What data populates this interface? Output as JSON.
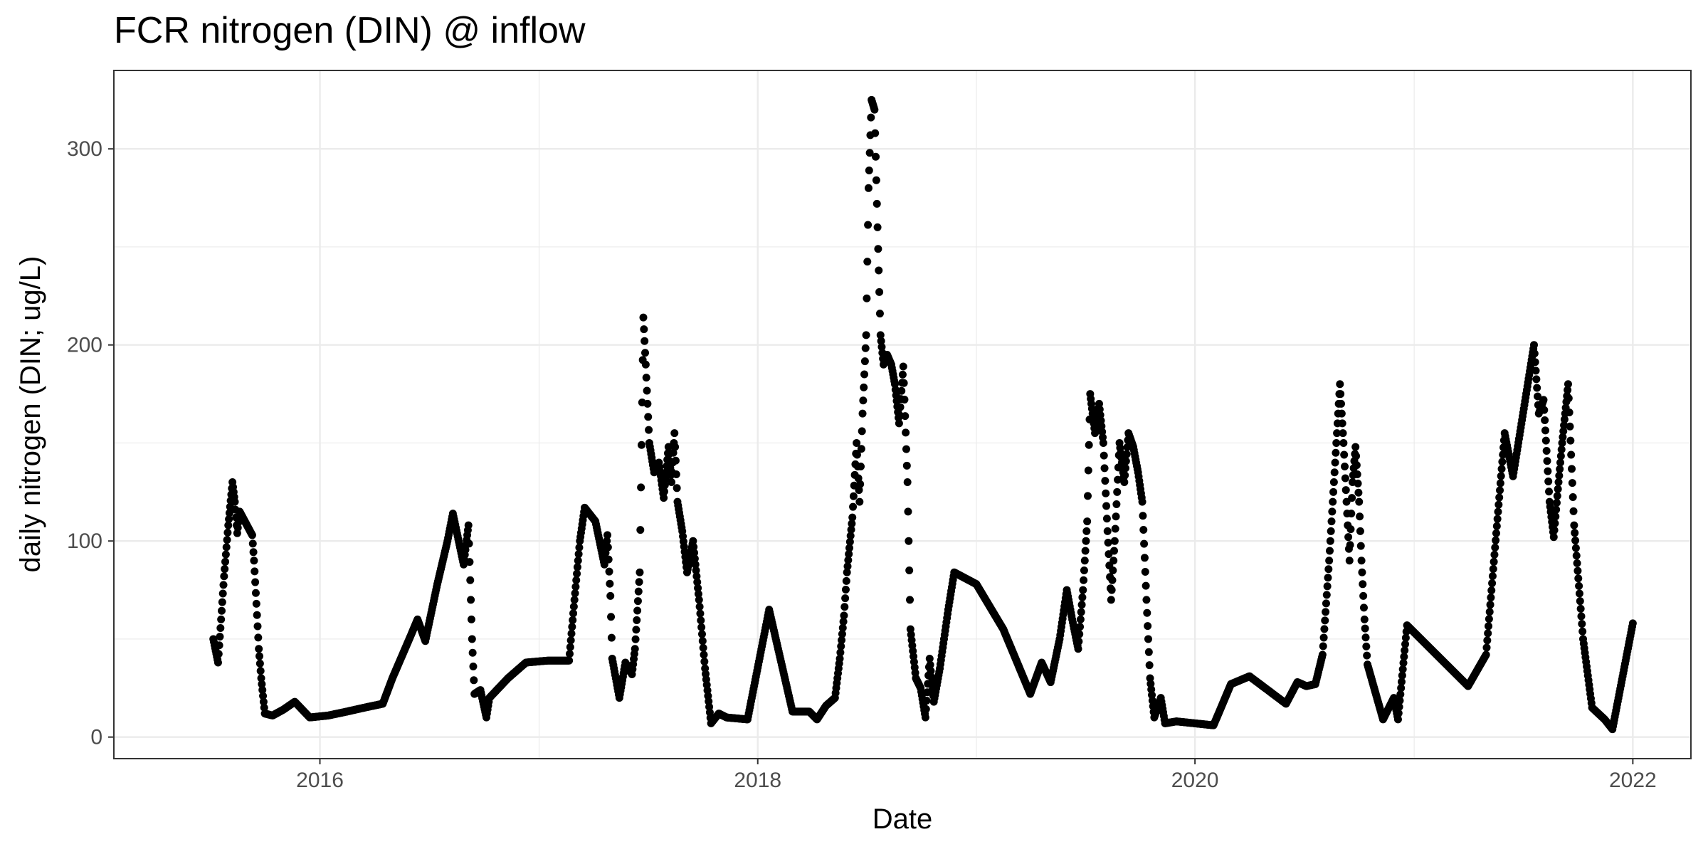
{
  "chart_data": {
    "type": "scatter",
    "title": "FCR nitrogen (DIN) @ inflow",
    "xlabel": "Date",
    "ylabel": "daily nitrogen (DIN; ug/L)",
    "x_type": "date",
    "xlim": [
      "2015-01-22",
      "2022-04-08"
    ],
    "ylim": [
      -11,
      340
    ],
    "x_ticks": [
      {
        "value": "2016-01-01",
        "label": "2016"
      },
      {
        "value": "2018-01-01",
        "label": "2018"
      },
      {
        "value": "2020-01-01",
        "label": "2020"
      },
      {
        "value": "2022-01-01",
        "label": "2022"
      }
    ],
    "x_minor": [
      "2017-01-01",
      "2019-01-01",
      "2021-01-01"
    ],
    "y_ticks": [
      0,
      100,
      200,
      300
    ],
    "y_minor": [
      50,
      150,
      250
    ],
    "grid": true,
    "legend": "none",
    "colors": {
      "points": "#000000",
      "grid": "#ebebeb",
      "panel_border": "#333333",
      "tick_label": "#4d4d4d"
    },
    "series": [
      {
        "points": [
          [
            "2015-07-07",
            50
          ],
          [
            "2015-07-15",
            38
          ],
          [
            "2015-07-20",
            60
          ],
          [
            "2015-07-25",
            82
          ],
          [
            "2015-08-01",
            108
          ],
          [
            "2015-08-08",
            130
          ],
          [
            "2015-08-12",
            120
          ],
          [
            "2015-08-16",
            104
          ],
          [
            "2015-08-20",
            115
          ],
          [
            "2015-09-10",
            103
          ],
          [
            "2015-09-13",
            90
          ],
          [
            "2015-09-17",
            68
          ],
          [
            "2015-09-21",
            45
          ],
          [
            "2015-09-25",
            30
          ],
          [
            "2015-10-01",
            12
          ],
          [
            "2015-10-14",
            11
          ],
          [
            "2015-11-01",
            14
          ],
          [
            "2015-11-20",
            18
          ],
          [
            "2015-12-15",
            10
          ],
          [
            "2016-01-15",
            11
          ],
          [
            "2016-02-15",
            13
          ],
          [
            "2016-03-15",
            15
          ],
          [
            "2016-04-15",
            17
          ],
          [
            "2016-05-01",
            30
          ],
          [
            "2016-06-01",
            52
          ],
          [
            "2016-06-12",
            60
          ],
          [
            "2016-06-25",
            49
          ],
          [
            "2016-07-15",
            78
          ],
          [
            "2016-08-01",
            100
          ],
          [
            "2016-08-10",
            114
          ],
          [
            "2016-08-28",
            88
          ],
          [
            "2016-09-05",
            108
          ],
          [
            "2016-09-08",
            80
          ],
          [
            "2016-09-11",
            50
          ],
          [
            "2016-09-15",
            22
          ],
          [
            "2016-09-25",
            24
          ],
          [
            "2016-10-05",
            10
          ],
          [
            "2016-10-10",
            20
          ],
          [
            "2016-11-10",
            30
          ],
          [
            "2016-12-10",
            38
          ],
          [
            "2017-01-15",
            39
          ],
          [
            "2017-02-20",
            39
          ],
          [
            "2017-03-01",
            70
          ],
          [
            "2017-03-10",
            100
          ],
          [
            "2017-03-18",
            117
          ],
          [
            "2017-04-05",
            110
          ],
          [
            "2017-04-20",
            88
          ],
          [
            "2017-04-25",
            103
          ],
          [
            "2017-04-30",
            72
          ],
          [
            "2017-05-03",
            40
          ],
          [
            "2017-05-15",
            20
          ],
          [
            "2017-05-25",
            38
          ],
          [
            "2017-06-05",
            32
          ],
          [
            "2017-06-10",
            45
          ],
          [
            "2017-06-18",
            84
          ],
          [
            "2017-06-24",
            214
          ],
          [
            "2017-06-28",
            190
          ],
          [
            "2017-07-04",
            150
          ],
          [
            "2017-07-12",
            135
          ],
          [
            "2017-07-20",
            140
          ],
          [
            "2017-07-28",
            122
          ],
          [
            "2017-08-05",
            148
          ],
          [
            "2017-08-10",
            130
          ],
          [
            "2017-08-15",
            155
          ],
          [
            "2017-08-20",
            120
          ],
          [
            "2017-08-28",
            105
          ],
          [
            "2017-09-05",
            84
          ],
          [
            "2017-09-15",
            100
          ],
          [
            "2017-09-25",
            70
          ],
          [
            "2017-10-05",
            35
          ],
          [
            "2017-10-15",
            7
          ],
          [
            "2017-10-28",
            12
          ],
          [
            "2017-11-10",
            10
          ],
          [
            "2017-12-15",
            9
          ],
          [
            "2018-01-20",
            65
          ],
          [
            "2018-02-28",
            13
          ],
          [
            "2018-03-28",
            13
          ],
          [
            "2018-04-10",
            9
          ],
          [
            "2018-04-25",
            16
          ],
          [
            "2018-05-10",
            20
          ],
          [
            "2018-05-18",
            40
          ],
          [
            "2018-05-25",
            62
          ],
          [
            "2018-05-30",
            84
          ],
          [
            "2018-06-08",
            112
          ],
          [
            "2018-06-15",
            150
          ],
          [
            "2018-06-20",
            120
          ],
          [
            "2018-06-25",
            165
          ],
          [
            "2018-07-01",
            205
          ],
          [
            "2018-07-05",
            280
          ],
          [
            "2018-07-10",
            325
          ],
          [
            "2018-07-15",
            320
          ],
          [
            "2018-07-20",
            260
          ],
          [
            "2018-07-25",
            205
          ],
          [
            "2018-07-30",
            190
          ],
          [
            "2018-08-05",
            195
          ],
          [
            "2018-08-12",
            190
          ],
          [
            "2018-08-18",
            180
          ],
          [
            "2018-08-25",
            160
          ],
          [
            "2018-09-01",
            189
          ],
          [
            "2018-09-08",
            130
          ],
          [
            "2018-09-13",
            55
          ],
          [
            "2018-09-22",
            30
          ],
          [
            "2018-09-30",
            25
          ],
          [
            "2018-10-08",
            10
          ],
          [
            "2018-10-15",
            40
          ],
          [
            "2018-10-22",
            18
          ],
          [
            "2018-11-01",
            35
          ],
          [
            "2018-11-15",
            65
          ],
          [
            "2018-11-25",
            84
          ],
          [
            "2019-01-01",
            78
          ],
          [
            "2019-02-15",
            55
          ],
          [
            "2019-04-01",
            22
          ],
          [
            "2019-04-20",
            38
          ],
          [
            "2019-05-05",
            28
          ],
          [
            "2019-05-20",
            50
          ],
          [
            "2019-06-01",
            75
          ],
          [
            "2019-06-10",
            60
          ],
          [
            "2019-06-20",
            45
          ],
          [
            "2019-06-28",
            75
          ],
          [
            "2019-07-05",
            110
          ],
          [
            "2019-07-10",
            175
          ],
          [
            "2019-07-18",
            155
          ],
          [
            "2019-07-25",
            170
          ],
          [
            "2019-08-01",
            150
          ],
          [
            "2019-08-08",
            105
          ],
          [
            "2019-08-14",
            70
          ],
          [
            "2019-08-20",
            100
          ],
          [
            "2019-08-28",
            150
          ],
          [
            "2019-09-05",
            130
          ],
          [
            "2019-09-12",
            155
          ],
          [
            "2019-09-20",
            148
          ],
          [
            "2019-09-28",
            135
          ],
          [
            "2019-10-05",
            120
          ],
          [
            "2019-10-12",
            70
          ],
          [
            "2019-10-18",
            30
          ],
          [
            "2019-10-25",
            10
          ],
          [
            "2019-11-05",
            20
          ],
          [
            "2019-11-12",
            7
          ],
          [
            "2019-12-01",
            8
          ],
          [
            "2020-01-01",
            7
          ],
          [
            "2020-02-01",
            6
          ],
          [
            "2020-03-01",
            27
          ],
          [
            "2020-04-01",
            31
          ],
          [
            "2020-06-01",
            17
          ],
          [
            "2020-06-20",
            28
          ],
          [
            "2020-07-05",
            26
          ],
          [
            "2020-07-20",
            27
          ],
          [
            "2020-08-01",
            42
          ],
          [
            "2020-08-12",
            90
          ],
          [
            "2020-08-22",
            140
          ],
          [
            "2020-08-30",
            180
          ],
          [
            "2020-09-05",
            150
          ],
          [
            "2020-09-10",
            120
          ],
          [
            "2020-09-15",
            90
          ],
          [
            "2020-09-20",
            130
          ],
          [
            "2020-09-25",
            148
          ],
          [
            "2020-10-01",
            120
          ],
          [
            "2020-10-05",
            90
          ],
          [
            "2020-10-10",
            60
          ],
          [
            "2020-10-15",
            37
          ],
          [
            "2020-11-10",
            9
          ],
          [
            "2020-11-28",
            20
          ],
          [
            "2020-12-05",
            9
          ],
          [
            "2020-12-20",
            57
          ],
          [
            "2021-04-01",
            26
          ],
          [
            "2021-05-01",
            42
          ],
          [
            "2021-06-01",
            155
          ],
          [
            "2021-06-15",
            133
          ],
          [
            "2021-07-20",
            200
          ],
          [
            "2021-07-28",
            165
          ],
          [
            "2021-08-05",
            172
          ],
          [
            "2021-08-15",
            120
          ],
          [
            "2021-08-22",
            102
          ],
          [
            "2021-08-30",
            130
          ],
          [
            "2021-09-05",
            150
          ],
          [
            "2021-09-15",
            180
          ],
          [
            "2021-09-25",
            108
          ],
          [
            "2021-10-10",
            50
          ],
          [
            "2021-10-25",
            15
          ],
          [
            "2021-11-15",
            9
          ],
          [
            "2021-11-28",
            4
          ],
          [
            "2022-01-01",
            58
          ]
        ]
      }
    ]
  }
}
